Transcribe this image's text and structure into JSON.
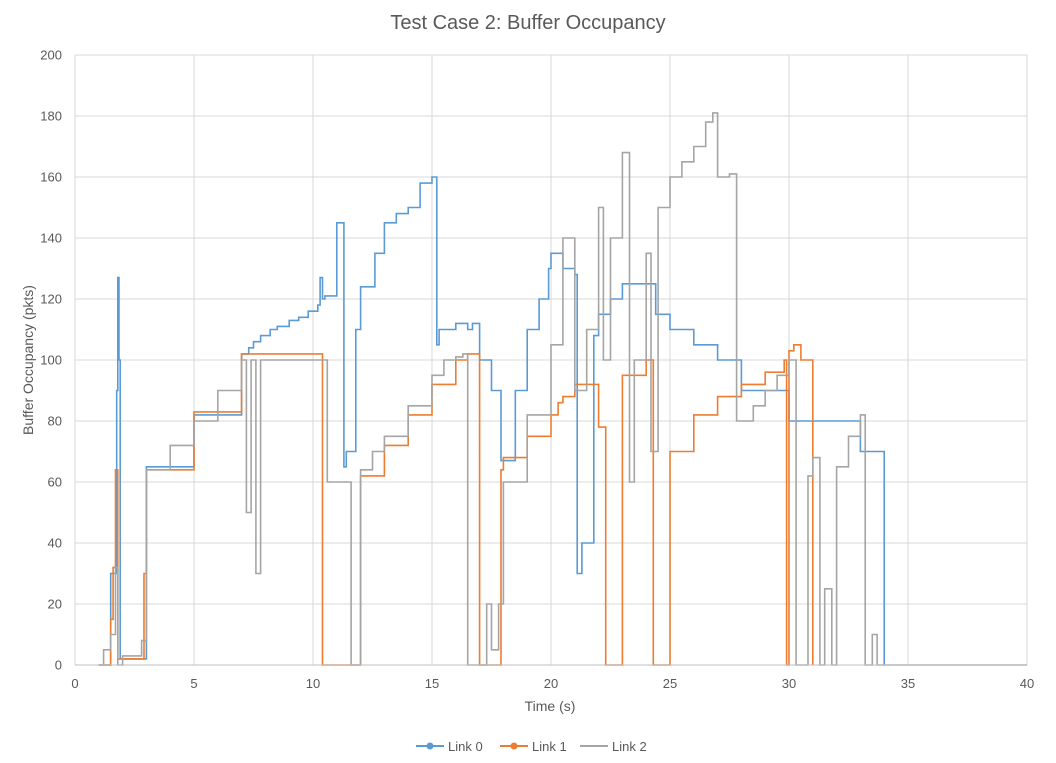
{
  "chart_data": {
    "type": "line",
    "title": "Test Case 2: Buffer Occupancy",
    "xlabel": "Time (s)",
    "ylabel": "Buffer Occupancy (pkts)",
    "xlim": [
      0,
      40
    ],
    "ylim": [
      0,
      200
    ],
    "xticks": [
      "0",
      "5",
      "10",
      "15",
      "20",
      "25",
      "30",
      "35",
      "40"
    ],
    "yticks": [
      "0",
      "20",
      "40",
      "60",
      "80",
      "100",
      "120",
      "140",
      "160",
      "180",
      "200"
    ],
    "grid": true,
    "legend_position": "bottom",
    "series": [
      {
        "name": "Link 0",
        "color": "#5b9bd5",
        "x": [
          1.0,
          1.5,
          1.75,
          1.8,
          1.85,
          1.9,
          2.5,
          3.0,
          5.0,
          7.0,
          7.3,
          7.5,
          7.8,
          8.2,
          8.5,
          9.0,
          9.4,
          9.8,
          10.2,
          10.3,
          10.4,
          10.5,
          10.8,
          11.0,
          11.3,
          11.4,
          11.8,
          12.0,
          12.6,
          13.0,
          13.5,
          14.0,
          14.5,
          15.0,
          15.2,
          15.3,
          16.0,
          16.5,
          16.7,
          17.0,
          17.5,
          17.9,
          18.5,
          19.0,
          19.5,
          19.9,
          20.0,
          20.5,
          21.0,
          21.1,
          21.3,
          21.8,
          22.0,
          22.5,
          23.0,
          24.0,
          24.4,
          25.0,
          26.0,
          27.0,
          28.0,
          30.0,
          33.0,
          34.0
        ],
        "y": [
          0,
          30,
          90,
          127,
          100,
          2,
          2,
          65,
          82,
          102,
          104,
          106,
          108,
          110,
          111,
          113,
          114,
          116,
          118,
          127,
          120,
          121,
          121,
          145,
          65,
          70,
          110,
          124,
          135,
          145,
          148,
          150,
          158,
          160,
          105,
          110,
          112,
          110,
          112,
          100,
          90,
          67,
          90,
          110,
          120,
          130,
          135,
          130,
          128,
          30,
          40,
          108,
          115,
          120,
          125,
          125,
          115,
          110,
          105,
          100,
          90,
          80,
          70,
          0
        ]
      },
      {
        "name": "Link 1",
        "color": "#ed7d31",
        "x": [
          1.0,
          1.5,
          1.6,
          1.7,
          1.8,
          2.5,
          2.9,
          3.0,
          5.0,
          7.0,
          7.5,
          8.0,
          8.5,
          9.0,
          9.5,
          10.0,
          10.2,
          10.4,
          11.5,
          12.0,
          13.0,
          14.0,
          15.0,
          16.0,
          16.5,
          17.0,
          17.9,
          18.0,
          19.0,
          20.0,
          20.3,
          20.5,
          21.0,
          22.0,
          22.3,
          23.0,
          24.0,
          24.3,
          25.0,
          26.0,
          27.0,
          28.0,
          29.0,
          29.8,
          29.9,
          30.0,
          30.2,
          30.4,
          30.5,
          31.0
        ],
        "y": [
          0,
          15,
          32,
          64,
          2,
          2,
          30,
          64,
          83,
          102,
          102,
          102,
          102,
          102,
          102,
          102,
          102,
          0,
          0,
          62,
          72,
          82,
          92,
          100,
          102,
          0,
          64,
          68,
          75,
          82,
          86,
          88,
          92,
          78,
          0,
          95,
          100,
          0,
          70,
          82,
          88,
          92,
          96,
          100,
          0,
          103,
          105,
          105,
          100,
          0
        ]
      },
      {
        "name": "Link 2",
        "color": "#a5a5a5",
        "x": [
          1.0,
          1.2,
          1.5,
          1.7,
          1.8,
          1.9,
          2.0,
          2.5,
          2.8,
          3.0,
          4.0,
          5.0,
          6.0,
          7.0,
          7.2,
          7.4,
          7.6,
          7.8,
          8.2,
          8.6,
          9.0,
          9.4,
          9.8,
          10.2,
          10.6,
          11.0,
          11.4,
          11.6,
          12.0,
          12.5,
          13.0,
          14.0,
          15.0,
          15.5,
          16.0,
          16.3,
          16.5,
          17.0,
          17.3,
          17.5,
          17.8,
          18.0,
          19.0,
          20.0,
          20.5,
          21.0,
          21.5,
          22.0,
          22.2,
          22.5,
          23.0,
          23.3,
          23.5,
          24.0,
          24.2,
          24.5,
          25.0,
          25.5,
          26.0,
          26.5,
          26.8,
          27.0,
          27.5,
          27.8,
          28.0,
          28.5,
          29.0,
          29.5,
          30.0,
          30.3,
          30.5,
          30.8,
          31.0,
          31.3,
          31.5,
          31.8,
          32.0,
          32.5,
          33.0,
          33.2,
          33.5,
          33.7,
          34.0,
          35.0,
          40.0
        ],
        "y": [
          0,
          5,
          10,
          32,
          0,
          0,
          3,
          3,
          8,
          64,
          72,
          80,
          90,
          100,
          50,
          100,
          30,
          100,
          100,
          100,
          100,
          100,
          100,
          100,
          60,
          60,
          60,
          0,
          64,
          70,
          75,
          85,
          95,
          100,
          101,
          102,
          0,
          0,
          20,
          5,
          20,
          60,
          82,
          105,
          140,
          90,
          110,
          150,
          100,
          140,
          168,
          60,
          100,
          135,
          70,
          150,
          160,
          165,
          170,
          178,
          181,
          160,
          161,
          80,
          80,
          85,
          90,
          95,
          100,
          0,
          0,
          62,
          68,
          0,
          25,
          0,
          65,
          75,
          82,
          0,
          10,
          0,
          0,
          0,
          0
        ]
      }
    ]
  }
}
